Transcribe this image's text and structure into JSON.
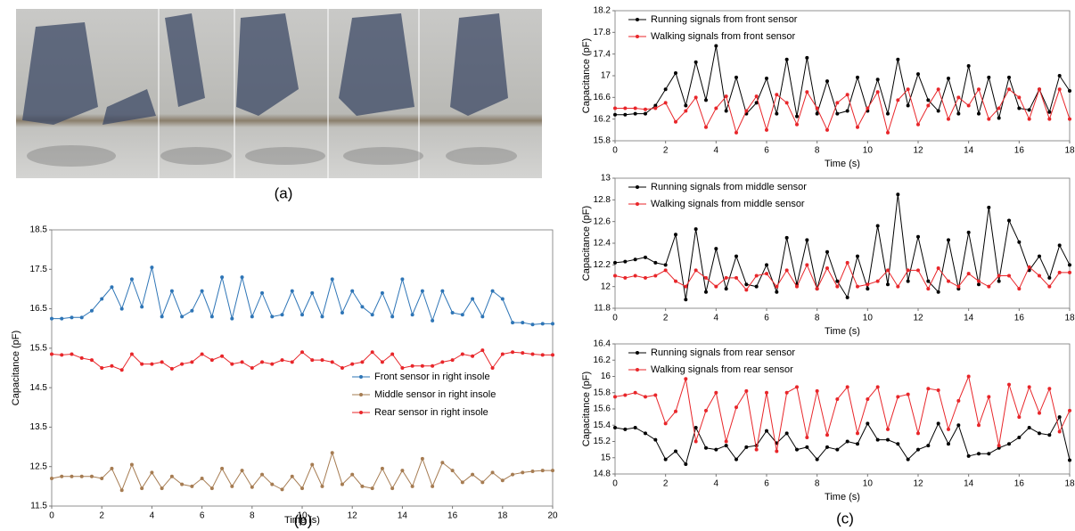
{
  "panel_labels": [
    "(a)",
    "(b)",
    "(c)"
  ],
  "chart_data": [
    {
      "type": "line",
      "xlabel": "Time (s)",
      "ylabel": "Capacitance (pF)",
      "xlim": [
        0,
        20
      ],
      "xticks": [
        0,
        2,
        4,
        6,
        8,
        10,
        12,
        14,
        16,
        18,
        20
      ],
      "ylim": [
        11.5,
        18.5
      ],
      "yticks": [
        11.5,
        12.5,
        13.5,
        14.5,
        15.5,
        16.5,
        17.5,
        18.5
      ],
      "legend": "center right",
      "x": [
        0,
        0.4,
        0.8,
        1.2,
        1.6,
        2,
        2.4,
        2.8,
        3.2,
        3.6,
        4,
        4.4,
        4.8,
        5.2,
        5.6,
        6,
        6.4,
        6.8,
        7.2,
        7.6,
        8,
        8.4,
        8.8,
        9.2,
        9.6,
        10,
        10.4,
        10.8,
        11.2,
        11.6,
        12,
        12.4,
        12.8,
        13.2,
        13.6,
        14,
        14.4,
        14.8,
        15.2,
        15.6,
        16,
        16.4,
        16.8,
        17.2,
        17.6,
        18,
        18.4,
        18.8,
        19.2,
        19.6,
        20
      ],
      "series": [
        {
          "name": "Front sensor in right insole",
          "color": "#2e75b6",
          "values": [
            16.25,
            16.25,
            16.28,
            16.28,
            16.45,
            16.75,
            17.05,
            16.5,
            17.25,
            16.55,
            17.55,
            16.3,
            16.95,
            16.3,
            16.45,
            16.95,
            16.3,
            17.3,
            16.25,
            17.3,
            16.3,
            16.9,
            16.3,
            16.35,
            16.95,
            16.35,
            16.9,
            16.3,
            17.25,
            16.4,
            16.95,
            16.55,
            16.35,
            16.9,
            16.3,
            17.25,
            16.35,
            16.95,
            16.2,
            16.95,
            16.4,
            16.35,
            16.75,
            16.3,
            16.95,
            16.75,
            16.15,
            16.15,
            16.1,
            16.12,
            16.12
          ]
        },
        {
          "name": "Middle sensor in right insole",
          "color": "#a67c52",
          "values": [
            12.2,
            12.25,
            12.25,
            12.25,
            12.25,
            12.2,
            12.45,
            11.9,
            12.55,
            11.95,
            12.35,
            11.95,
            12.25,
            12.05,
            12.0,
            12.2,
            11.95,
            12.45,
            12.0,
            12.4,
            11.98,
            12.3,
            12.05,
            11.92,
            12.25,
            11.95,
            12.55,
            12.0,
            12.85,
            12.05,
            12.3,
            12.0,
            11.95,
            12.45,
            11.95,
            12.4,
            12.0,
            12.7,
            12.0,
            12.6,
            12.4,
            12.1,
            12.3,
            12.1,
            12.35,
            12.15,
            12.3,
            12.35,
            12.38,
            12.4,
            12.4
          ]
        },
        {
          "name": "Rear sensor in right insole",
          "color": "#e8262a",
          "values": [
            15.35,
            15.33,
            15.35,
            15.25,
            15.2,
            15.0,
            15.05,
            14.95,
            15.35,
            15.1,
            15.1,
            15.15,
            14.98,
            15.1,
            15.15,
            15.35,
            15.2,
            15.3,
            15.1,
            15.15,
            15.0,
            15.15,
            15.1,
            15.2,
            15.15,
            15.4,
            15.2,
            15.2,
            15.15,
            15.0,
            15.1,
            15.15,
            15.4,
            15.15,
            15.35,
            15.0,
            15.05,
            15.05,
            15.05,
            15.15,
            15.2,
            15.35,
            15.3,
            15.45,
            15.0,
            15.35,
            15.4,
            15.38,
            15.35,
            15.33,
            15.33
          ]
        }
      ]
    },
    {
      "type": "line",
      "xlabel": "Time (s)",
      "ylabel": "Capacitance (pF)",
      "xlim": [
        0,
        18
      ],
      "xticks": [
        0,
        2,
        4,
        6,
        8,
        10,
        12,
        14,
        16,
        18
      ],
      "ylim": [
        15.8,
        18.2
      ],
      "yticks": [
        15.8,
        16.2,
        16.6,
        17,
        17.4,
        17.8,
        18.2
      ],
      "legend": "upper left",
      "x": [
        0,
        0.4,
        0.8,
        1.2,
        1.6,
        2,
        2.4,
        2.8,
        3.2,
        3.6,
        4,
        4.4,
        4.8,
        5.2,
        5.6,
        6,
        6.4,
        6.8,
        7.2,
        7.6,
        8,
        8.4,
        8.8,
        9.2,
        9.6,
        10,
        10.4,
        10.8,
        11.2,
        11.6,
        12,
        12.4,
        12.8,
        13.2,
        13.6,
        14,
        14.4,
        14.8,
        15.2,
        15.6,
        16,
        16.4,
        16.8,
        17.2,
        17.6,
        18
      ],
      "series": [
        {
          "name": "Running signals from front sensor",
          "color": "#000000",
          "values": [
            16.28,
            16.28,
            16.3,
            16.3,
            16.45,
            16.75,
            17.05,
            16.45,
            17.25,
            16.55,
            17.55,
            16.35,
            16.97,
            16.3,
            16.5,
            16.95,
            16.3,
            17.3,
            16.25,
            17.33,
            16.3,
            16.9,
            16.3,
            16.35,
            16.97,
            16.35,
            16.93,
            16.3,
            17.3,
            16.45,
            17.03,
            16.55,
            16.35,
            16.95,
            16.3,
            17.18,
            16.3,
            16.97,
            16.22,
            16.97,
            16.4,
            16.37,
            16.75,
            16.33,
            17.0,
            16.72
          ]
        },
        {
          "name": "Walking signals from front sensor",
          "color": "#e8262a",
          "values": [
            16.4,
            16.4,
            16.4,
            16.38,
            16.4,
            16.5,
            16.15,
            16.35,
            16.6,
            16.05,
            16.4,
            16.62,
            15.95,
            16.35,
            16.62,
            16.0,
            16.65,
            16.5,
            16.1,
            16.7,
            16.4,
            16.0,
            16.5,
            16.65,
            16.05,
            16.4,
            16.7,
            15.95,
            16.55,
            16.75,
            16.1,
            16.45,
            16.75,
            16.2,
            16.6,
            16.45,
            16.75,
            16.2,
            16.4,
            16.75,
            16.6,
            16.2,
            16.75,
            16.2,
            16.75,
            16.2
          ]
        }
      ]
    },
    {
      "type": "line",
      "xlabel": "Time (s)",
      "ylabel": "Capacitance (pF)",
      "xlim": [
        0,
        18
      ],
      "xticks": [
        0,
        2,
        4,
        6,
        8,
        10,
        12,
        14,
        16,
        18
      ],
      "ylim": [
        11.8,
        13
      ],
      "yticks": [
        11.8,
        12,
        12.2,
        12.4,
        12.6,
        12.8,
        13
      ],
      "legend": "upper left",
      "x": [
        0,
        0.4,
        0.8,
        1.2,
        1.6,
        2,
        2.4,
        2.8,
        3.2,
        3.6,
        4,
        4.4,
        4.8,
        5.2,
        5.6,
        6,
        6.4,
        6.8,
        7.2,
        7.6,
        8,
        8.4,
        8.8,
        9.2,
        9.6,
        10,
        10.4,
        10.8,
        11.2,
        11.6,
        12,
        12.4,
        12.8,
        13.2,
        13.6,
        14,
        14.4,
        14.8,
        15.2,
        15.6,
        16,
        16.4,
        16.8,
        17.2,
        17.6,
        18
      ],
      "series": [
        {
          "name": "Running signals from middle sensor",
          "color": "#000000",
          "values": [
            12.22,
            12.23,
            12.25,
            12.27,
            12.22,
            12.2,
            12.48,
            11.88,
            12.53,
            11.95,
            12.35,
            11.98,
            12.28,
            12.02,
            12.0,
            12.2,
            11.95,
            12.45,
            12.02,
            12.43,
            11.98,
            12.32,
            12.05,
            11.9,
            12.28,
            11.98,
            12.56,
            12.02,
            12.85,
            12.05,
            12.46,
            12.05,
            11.95,
            12.43,
            11.98,
            12.5,
            12.02,
            12.73,
            12.05,
            12.61,
            12.41,
            12.15,
            12.28,
            12.08,
            12.38,
            12.2
          ]
        },
        {
          "name": "Walking signals from middle sensor",
          "color": "#e8262a",
          "values": [
            12.1,
            12.08,
            12.1,
            12.08,
            12.1,
            12.15,
            12.05,
            12.0,
            12.15,
            12.08,
            12.0,
            12.08,
            12.08,
            11.97,
            12.1,
            12.12,
            12.0,
            12.15,
            12.0,
            12.2,
            11.98,
            12.17,
            12.0,
            12.22,
            12.0,
            12.02,
            12.05,
            12.15,
            12.0,
            12.15,
            12.15,
            11.98,
            12.17,
            12.05,
            12.0,
            12.12,
            12.05,
            12.0,
            12.1,
            12.1,
            11.98,
            12.18,
            12.1,
            12.0,
            12.13,
            12.13
          ]
        }
      ]
    },
    {
      "type": "line",
      "xlabel": "Time (s)",
      "ylabel": "Capacitance (pF)",
      "xlim": [
        0,
        18
      ],
      "xticks": [
        0,
        2,
        4,
        6,
        8,
        10,
        12,
        14,
        16,
        18
      ],
      "ylim": [
        14.8,
        16.4
      ],
      "yticks": [
        14.8,
        15,
        15.2,
        15.4,
        15.6,
        15.8,
        16,
        16.2,
        16.4
      ],
      "legend": "upper left",
      "x": [
        0,
        0.4,
        0.8,
        1.2,
        1.6,
        2,
        2.4,
        2.8,
        3.2,
        3.6,
        4,
        4.4,
        4.8,
        5.2,
        5.6,
        6,
        6.4,
        6.8,
        7.2,
        7.6,
        8,
        8.4,
        8.8,
        9.2,
        9.6,
        10,
        10.4,
        10.8,
        11.2,
        11.6,
        12,
        12.4,
        12.8,
        13.2,
        13.6,
        14,
        14.4,
        14.8,
        15.2,
        15.6,
        16,
        16.4,
        16.8,
        17.2,
        17.6,
        18
      ],
      "series": [
        {
          "name": "Running signals from rear sensor",
          "color": "#000000",
          "values": [
            15.37,
            15.35,
            15.37,
            15.3,
            15.22,
            14.98,
            15.08,
            14.92,
            15.37,
            15.12,
            15.1,
            15.15,
            14.98,
            15.13,
            15.15,
            15.33,
            15.18,
            15.3,
            15.1,
            15.13,
            14.98,
            15.13,
            15.1,
            15.2,
            15.17,
            15.42,
            15.22,
            15.22,
            15.17,
            14.98,
            15.1,
            15.15,
            15.42,
            15.17,
            15.4,
            15.02,
            15.05,
            15.05,
            15.12,
            15.17,
            15.25,
            15.37,
            15.3,
            15.28,
            15.5,
            14.97
          ]
        },
        {
          "name": "Walking signals from rear sensor",
          "color": "#e8262a",
          "values": [
            15.75,
            15.77,
            15.8,
            15.75,
            15.77,
            15.42,
            15.57,
            15.97,
            15.2,
            15.58,
            15.8,
            15.2,
            15.62,
            15.82,
            15.1,
            15.8,
            15.08,
            15.8,
            15.87,
            15.25,
            15.82,
            15.28,
            15.72,
            15.87,
            15.3,
            15.72,
            15.87,
            15.35,
            15.75,
            15.78,
            15.3,
            15.85,
            15.83,
            15.35,
            15.7,
            16.0,
            15.4,
            15.75,
            15.15,
            15.9,
            15.5,
            15.87,
            15.55,
            15.85,
            15.32,
            15.58
          ]
        }
      ]
    }
  ]
}
